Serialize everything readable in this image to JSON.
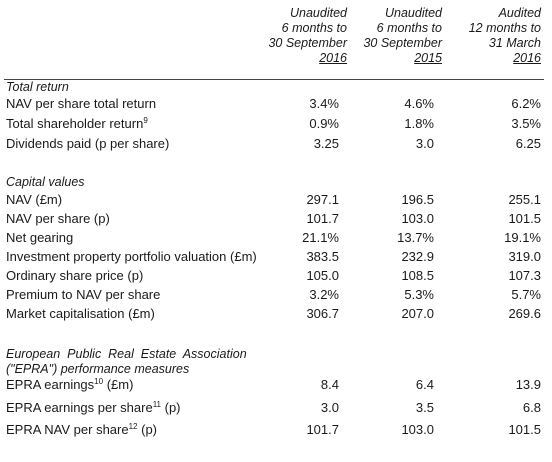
{
  "columns": [
    {
      "lines": [
        "Unaudited",
        "6 months to",
        "30 September",
        "2016"
      ]
    },
    {
      "lines": [
        "Unaudited",
        "6 months to",
        "30 September",
        "2015"
      ]
    },
    {
      "lines": [
        "Audited",
        "12 months to",
        "31 March",
        "2016"
      ]
    }
  ],
  "sections": {
    "total_return": {
      "title": "Total return",
      "rows": [
        {
          "label": "NAV per share total return",
          "sup": "",
          "suffix": "",
          "values": [
            "3.4%",
            "4.6%",
            "6.2%"
          ]
        },
        {
          "label": "Total shareholder return",
          "sup": "9",
          "suffix": "",
          "values": [
            "0.9%",
            "1.8%",
            "3.5%"
          ]
        },
        {
          "label": "Dividends paid (p per share)",
          "sup": "",
          "suffix": "",
          "values": [
            "3.25",
            "3.0",
            "6.25"
          ]
        }
      ]
    },
    "capital_values": {
      "title": "Capital values",
      "rows": [
        {
          "label": "NAV (£m)",
          "sup": "",
          "suffix": "",
          "values": [
            "297.1",
            "196.5",
            "255.1"
          ]
        },
        {
          "label": "NAV per share (p)",
          "sup": "",
          "suffix": "",
          "values": [
            "101.7",
            "103.0",
            "101.5"
          ]
        },
        {
          "label": "Net gearing",
          "sup": "",
          "suffix": "",
          "values": [
            "21.1%",
            "13.7%",
            "19.1%"
          ]
        },
        {
          "label": "Investment property portfolio valuation (£m)",
          "sup": "",
          "suffix": "",
          "values": [
            "383.5",
            "232.9",
            "319.0"
          ]
        },
        {
          "label": "Ordinary share price (p)",
          "sup": "",
          "suffix": "",
          "values": [
            "105.0",
            "108.5",
            "107.3"
          ]
        },
        {
          "label": "Premium to NAV per share",
          "sup": "",
          "suffix": "",
          "values": [
            "3.2%",
            "5.3%",
            "5.7%"
          ]
        },
        {
          "label": "Market capitalisation (£m)",
          "sup": "",
          "suffix": "",
          "values": [
            "306.7",
            "207.0",
            "269.6"
          ]
        }
      ]
    },
    "epra": {
      "title_line1": "European  Public  Real  Estate  Association",
      "title_line2": "(\"EPRA\") performance measures",
      "rows": [
        {
          "label": "EPRA earnings",
          "sup": "10",
          "suffix": " (£m)",
          "values": [
            "8.4",
            "6.4",
            "13.9"
          ]
        },
        {
          "label": "EPRA earnings per share",
          "sup": "11",
          "suffix": " (p)",
          "values": [
            "3.0",
            "3.5",
            "6.8"
          ]
        },
        {
          "label": "EPRA NAV per share",
          "sup": "12",
          "suffix": " (p)",
          "values": [
            "101.7",
            "103.0",
            "101.5"
          ]
        }
      ]
    }
  }
}
